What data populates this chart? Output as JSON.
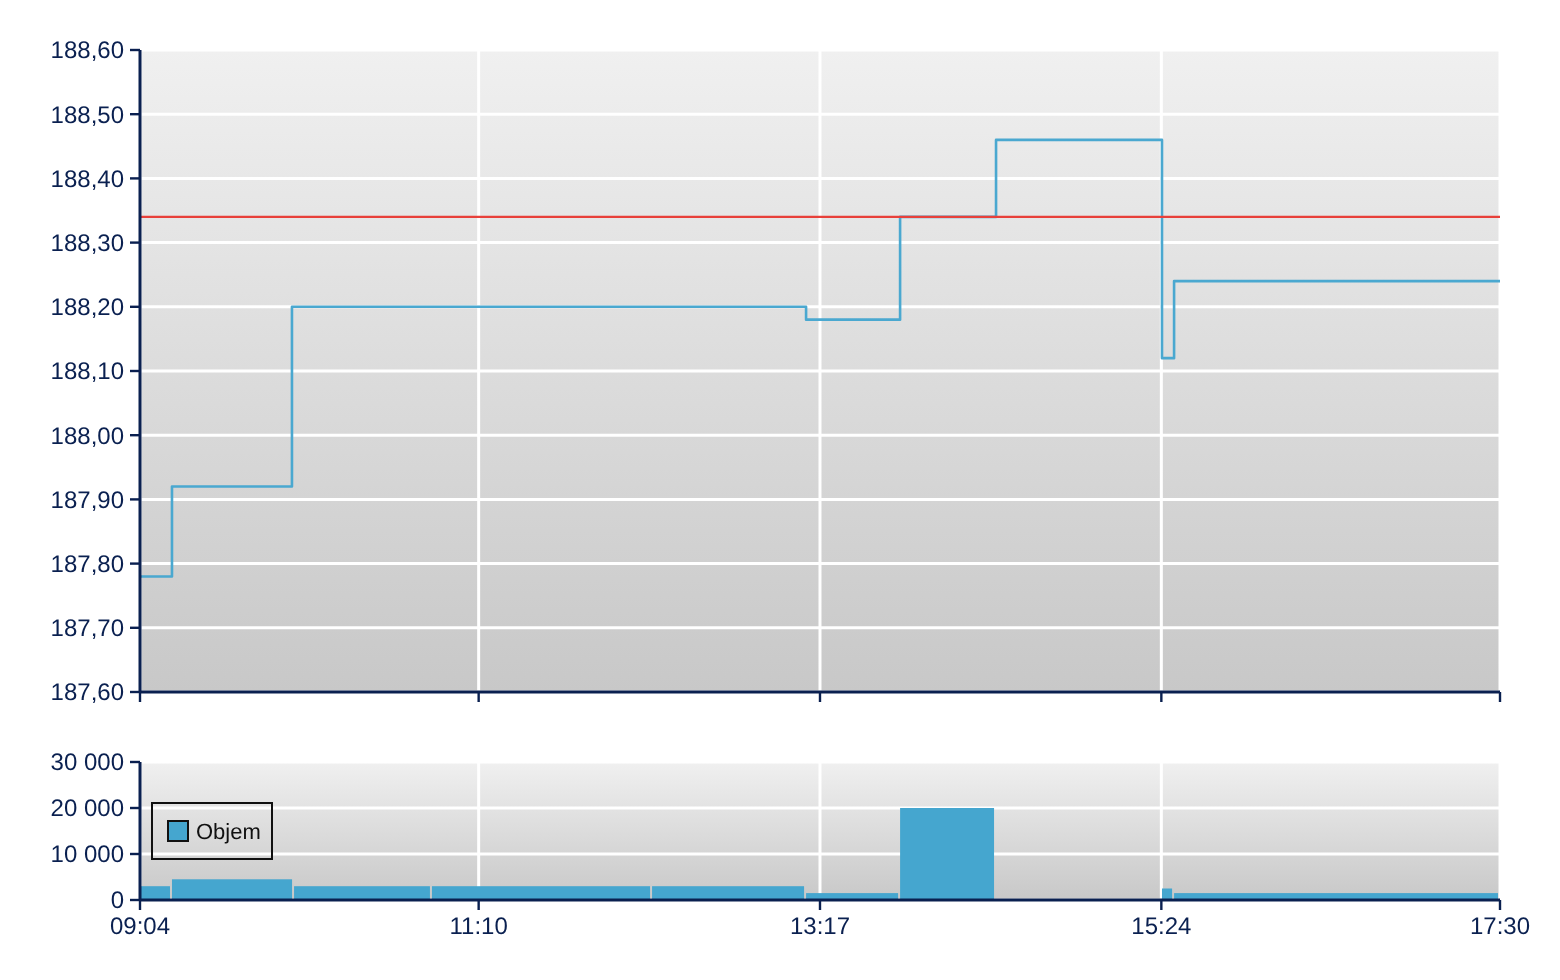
{
  "chart_data": [
    {
      "type": "step",
      "x": [
        9.0667,
        9.265,
        10.009,
        13.197,
        13.78,
        14.375,
        15.404,
        15.479,
        17.5
      ],
      "series": [
        {
          "color": "#4aa8d0",
          "values": [
            187.78,
            187.92,
            188.2,
            188.18,
            188.34,
            188.46,
            188.12,
            188.24,
            188.24
          ]
        }
      ],
      "xlim": [
        9.0667,
        17.5
      ],
      "xticks": [
        {
          "value": 9.0667,
          "label": null
        },
        {
          "value": 11.1667,
          "label": null
        },
        {
          "value": 13.2833,
          "label": null
        },
        {
          "value": 15.4,
          "label": null
        },
        {
          "value": 17.5,
          "label": null
        }
      ],
      "ylim": [
        187.6,
        188.6
      ],
      "yticks": [
        {
          "value": 187.6,
          "label": "187,60"
        },
        {
          "value": 187.7,
          "label": "187,70"
        },
        {
          "value": 187.8,
          "label": "187,80"
        },
        {
          "value": 187.9,
          "label": "187,90"
        },
        {
          "value": 188.0,
          "label": "188,00"
        },
        {
          "value": 188.1,
          "label": "188,10"
        },
        {
          "value": 188.2,
          "label": "188,20"
        },
        {
          "value": 188.3,
          "label": "188,30"
        },
        {
          "value": 188.4,
          "label": "188,40"
        },
        {
          "value": 188.5,
          "label": "188,50"
        },
        {
          "value": 188.6,
          "label": "188,60"
        }
      ],
      "ref_lines": [
        {
          "axis": "y",
          "value": 188.34,
          "color": "#e8403a"
        }
      ],
      "grid": true,
      "tick_labels": "y"
    },
    {
      "type": "histogram",
      "bins": [
        9.0667,
        9.265,
        10.022,
        10.877,
        12.242,
        13.197,
        13.78,
        14.375,
        15.404,
        15.479,
        17.5
      ],
      "series": [
        {
          "name": "Objem",
          "color": "#45a6cf",
          "values": [
            3000,
            4500,
            3000,
            3000,
            3000,
            1500,
            20000,
            null,
            2500,
            1500
          ]
        }
      ],
      "xlim": [
        9.0667,
        17.5
      ],
      "xticks": [
        {
          "value": 9.0667,
          "label": "09:04"
        },
        {
          "value": 11.1667,
          "label": "11:10"
        },
        {
          "value": 13.2833,
          "label": "13:17"
        },
        {
          "value": 15.4,
          "label": "15:24"
        },
        {
          "value": 17.5,
          "label": "17:30"
        }
      ],
      "ylim": [
        0,
        30000
      ],
      "yticks": [
        {
          "value": 0,
          "label": "0"
        },
        {
          "value": 10000,
          "label": "10 000"
        },
        {
          "value": 20000,
          "label": "20 000"
        },
        {
          "value": 30000,
          "label": "30 000"
        }
      ],
      "grid": true,
      "legend": "left"
    }
  ]
}
